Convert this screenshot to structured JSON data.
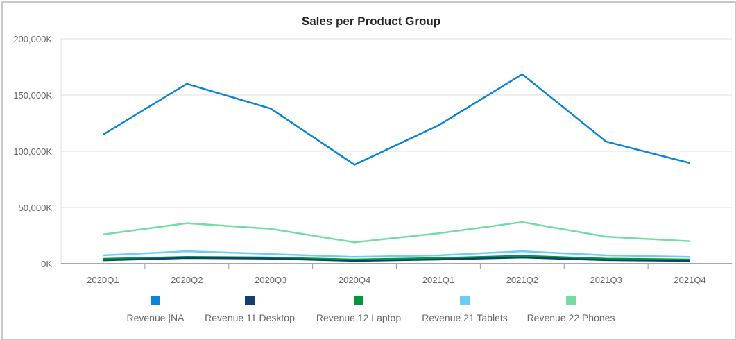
{
  "chart_data": {
    "type": "line",
    "title": "Sales per Product Group",
    "xlabel": "",
    "ylabel": "",
    "categories": [
      "2020Q1",
      "2020Q2",
      "2020Q3",
      "2020Q4",
      "2021Q1",
      "2021Q2",
      "2021Q3",
      "2021Q4"
    ],
    "ylim": [
      0,
      200000
    ],
    "yticks": [
      0,
      50000,
      100000,
      150000,
      200000
    ],
    "ytick_labels": [
      "0K",
      "50,000K",
      "100,000K",
      "150,000K",
      "200,000K"
    ],
    "grid": true,
    "legend_placement": "bottom",
    "series": [
      {
        "name": "Revenue |NA",
        "color": "#0a84d6",
        "values": [
          114800,
          160000,
          138000,
          88000,
          123000,
          168500,
          108600,
          89500
        ]
      },
      {
        "name": "Revenue 11 Desktop",
        "color": "#12406e",
        "values": [
          3000,
          5000,
          4500,
          2500,
          3700,
          5500,
          3200,
          2500
        ]
      },
      {
        "name": "Revenue 12 Laptop",
        "color": "#009639",
        "values": [
          4300,
          6000,
          5500,
          3700,
          5000,
          7000,
          4500,
          3700
        ]
      },
      {
        "name": "Revenue 21 Tablets",
        "color": "#6ccbf9",
        "values": [
          7400,
          11000,
          8600,
          6000,
          7400,
          11000,
          7400,
          6000
        ]
      },
      {
        "name": "Revenue 22 Phones",
        "color": "#74dca0",
        "values": [
          26000,
          36000,
          31000,
          19000,
          27000,
          37000,
          24000,
          20000
        ]
      }
    ]
  }
}
